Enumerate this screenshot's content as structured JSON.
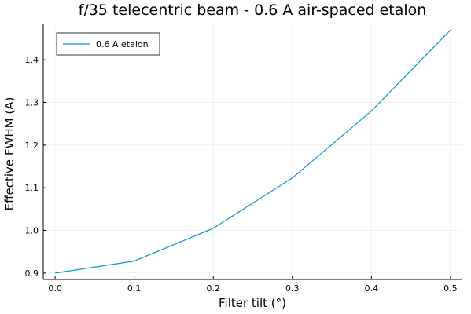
{
  "chart_data": {
    "type": "line",
    "title": "f/35 telecentric beam - 0.6 A air-spaced etalon",
    "xlabel": "Filter tilt (°)",
    "ylabel": "Effective FWHM (A)",
    "xlim": [
      -0.015,
      0.515
    ],
    "ylim": [
      0.885,
      1.485
    ],
    "xticks": [
      0.0,
      0.1,
      0.2,
      0.3,
      0.4,
      0.5
    ],
    "xtick_labels": [
      "0.0",
      "0.1",
      "0.2",
      "0.3",
      "0.4",
      "0.5"
    ],
    "yticks": [
      0.9,
      1.0,
      1.1,
      1.2,
      1.3,
      1.4
    ],
    "ytick_labels": [
      "0.9",
      "1.0",
      "1.1",
      "1.2",
      "1.3",
      "1.4"
    ],
    "grid": true,
    "legend_position": "top-left",
    "series": [
      {
        "name": "0.6 A etalon",
        "color": "#0099d4",
        "x": [
          0.0,
          0.1,
          0.2,
          0.3,
          0.4,
          0.5
        ],
        "y": [
          0.9,
          0.928,
          1.005,
          1.123,
          1.28,
          1.47
        ]
      }
    ]
  }
}
